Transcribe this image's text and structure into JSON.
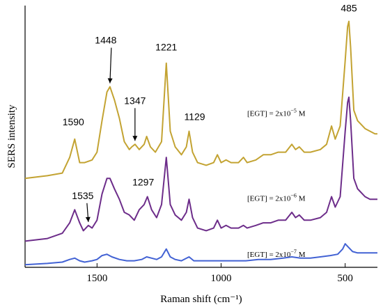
{
  "chart_data": {
    "type": "line",
    "title": "",
    "xlabel": "Raman shift (cm⁻¹)",
    "ylabel": "SERS intensity",
    "x_reversed": true,
    "xlim": [
      1790,
      370
    ],
    "ylim": [
      0,
      100
    ],
    "x_ticks": [
      {
        "value": 1500,
        "label": "1500"
      },
      {
        "value": 1000,
        "label": "1000"
      },
      {
        "value": 500,
        "label": "500"
      }
    ],
    "y_ticks_shown": false,
    "grid": false,
    "legend": "none",
    "series": [
      {
        "name_parts": {
          "prefix": "[EGT] = 2x10",
          "exp": "−5",
          "suffix": " M"
        },
        "color": "#c3a332",
        "offset": 34,
        "points": [
          [
            1790,
            0
          ],
          [
            1700,
            1
          ],
          [
            1640,
            2
          ],
          [
            1610,
            8
          ],
          [
            1590,
            15
          ],
          [
            1570,
            6
          ],
          [
            1550,
            6
          ],
          [
            1520,
            7
          ],
          [
            1500,
            10
          ],
          [
            1480,
            22
          ],
          [
            1460,
            33
          ],
          [
            1448,
            35
          ],
          [
            1430,
            30
          ],
          [
            1410,
            23
          ],
          [
            1390,
            14
          ],
          [
            1370,
            11
          ],
          [
            1360,
            12
          ],
          [
            1347,
            13
          ],
          [
            1330,
            11
          ],
          [
            1310,
            13
          ],
          [
            1300,
            16
          ],
          [
            1285,
            12
          ],
          [
            1265,
            10
          ],
          [
            1240,
            14
          ],
          [
            1221,
            44
          ],
          [
            1205,
            18
          ],
          [
            1185,
            12
          ],
          [
            1160,
            9
          ],
          [
            1140,
            12
          ],
          [
            1129,
            18
          ],
          [
            1115,
            10
          ],
          [
            1095,
            6
          ],
          [
            1060,
            5
          ],
          [
            1030,
            6
          ],
          [
            1015,
            9
          ],
          [
            1000,
            6
          ],
          [
            980,
            7
          ],
          [
            960,
            6
          ],
          [
            930,
            6
          ],
          [
            910,
            8
          ],
          [
            895,
            6
          ],
          [
            860,
            7
          ],
          [
            830,
            9
          ],
          [
            800,
            9
          ],
          [
            770,
            10
          ],
          [
            740,
            10
          ],
          [
            715,
            13
          ],
          [
            700,
            11
          ],
          [
            685,
            12
          ],
          [
            665,
            10
          ],
          [
            640,
            10
          ],
          [
            600,
            11
          ],
          [
            575,
            13
          ],
          [
            555,
            20
          ],
          [
            540,
            15
          ],
          [
            520,
            20
          ],
          [
            500,
            45
          ],
          [
            490,
            58
          ],
          [
            485,
            60
          ],
          [
            478,
            50
          ],
          [
            465,
            26
          ],
          [
            450,
            22
          ],
          [
            440,
            21
          ],
          [
            420,
            19
          ],
          [
            400,
            18
          ],
          [
            380,
            17
          ],
          [
            370,
            17
          ]
        ]
      },
      {
        "name_parts": {
          "prefix": "[EGT] = 2x10",
          "exp": "−6",
          "suffix": " M"
        },
        "color": "#6d2d8a",
        "offset": 10,
        "points": [
          [
            1790,
            0
          ],
          [
            1700,
            1
          ],
          [
            1640,
            3
          ],
          [
            1610,
            7
          ],
          [
            1590,
            12
          ],
          [
            1570,
            7
          ],
          [
            1555,
            4
          ],
          [
            1535,
            6
          ],
          [
            1520,
            5
          ],
          [
            1500,
            8
          ],
          [
            1480,
            18
          ],
          [
            1460,
            24
          ],
          [
            1448,
            24
          ],
          [
            1430,
            20
          ],
          [
            1410,
            16
          ],
          [
            1390,
            11
          ],
          [
            1370,
            10
          ],
          [
            1350,
            8
          ],
          [
            1330,
            12
          ],
          [
            1310,
            14
          ],
          [
            1297,
            17
          ],
          [
            1280,
            12
          ],
          [
            1260,
            9
          ],
          [
            1240,
            14
          ],
          [
            1221,
            32
          ],
          [
            1205,
            14
          ],
          [
            1185,
            10
          ],
          [
            1160,
            8
          ],
          [
            1140,
            11
          ],
          [
            1129,
            16
          ],
          [
            1115,
            9
          ],
          [
            1095,
            5
          ],
          [
            1060,
            4
          ],
          [
            1030,
            5
          ],
          [
            1015,
            8
          ],
          [
            1000,
            5
          ],
          [
            980,
            6
          ],
          [
            960,
            5
          ],
          [
            930,
            5
          ],
          [
            910,
            6
          ],
          [
            895,
            5
          ],
          [
            860,
            6
          ],
          [
            830,
            7
          ],
          [
            800,
            7
          ],
          [
            770,
            8
          ],
          [
            740,
            8
          ],
          [
            715,
            11
          ],
          [
            700,
            9
          ],
          [
            685,
            10
          ],
          [
            665,
            8
          ],
          [
            640,
            8
          ],
          [
            600,
            9
          ],
          [
            575,
            11
          ],
          [
            555,
            17
          ],
          [
            540,
            13
          ],
          [
            520,
            17
          ],
          [
            500,
            42
          ],
          [
            490,
            53
          ],
          [
            485,
            55
          ],
          [
            478,
            46
          ],
          [
            465,
            24
          ],
          [
            450,
            20
          ],
          [
            440,
            19
          ],
          [
            420,
            17
          ],
          [
            400,
            16
          ],
          [
            380,
            16
          ],
          [
            370,
            16
          ]
        ]
      },
      {
        "name_parts": {
          "prefix": "[EGT] = 2x10",
          "exp": "−7",
          "suffix": " M"
        },
        "color": "#4262d4",
        "offset": 1,
        "points": [
          [
            1790,
            0
          ],
          [
            1700,
            0.5
          ],
          [
            1640,
            1
          ],
          [
            1610,
            2
          ],
          [
            1590,
            2.5
          ],
          [
            1570,
            1.5
          ],
          [
            1550,
            1
          ],
          [
            1520,
            1.5
          ],
          [
            1500,
            2
          ],
          [
            1480,
            3.5
          ],
          [
            1460,
            4
          ],
          [
            1440,
            3
          ],
          [
            1410,
            2
          ],
          [
            1380,
            1.5
          ],
          [
            1350,
            1.5
          ],
          [
            1320,
            2
          ],
          [
            1300,
            3
          ],
          [
            1280,
            2.5
          ],
          [
            1260,
            2
          ],
          [
            1240,
            3
          ],
          [
            1221,
            6
          ],
          [
            1205,
            3
          ],
          [
            1185,
            2
          ],
          [
            1160,
            1.5
          ],
          [
            1129,
            3
          ],
          [
            1110,
            1.5
          ],
          [
            1080,
            1.5
          ],
          [
            1050,
            1.5
          ],
          [
            1000,
            1.5
          ],
          [
            950,
            1.5
          ],
          [
            900,
            1.5
          ],
          [
            850,
            2
          ],
          [
            800,
            2
          ],
          [
            750,
            2.5
          ],
          [
            715,
            3
          ],
          [
            680,
            2.5
          ],
          [
            640,
            2.5
          ],
          [
            600,
            3
          ],
          [
            560,
            3.5
          ],
          [
            530,
            4
          ],
          [
            510,
            6
          ],
          [
            500,
            8
          ],
          [
            490,
            7
          ],
          [
            470,
            5
          ],
          [
            450,
            4.5
          ],
          [
            420,
            4.5
          ],
          [
            400,
            4.5
          ],
          [
            380,
            4.5
          ],
          [
            370,
            4.5
          ]
        ]
      }
    ],
    "annotations": [
      {
        "text": "1590",
        "x": 1590,
        "series": 0,
        "arrow": false
      },
      {
        "text": "1448",
        "x": 1448,
        "series": 0,
        "arrow": true
      },
      {
        "text": "1347",
        "x": 1347,
        "series": 0,
        "arrow": true
      },
      {
        "text": "1221",
        "x": 1221,
        "series": 0,
        "arrow": false
      },
      {
        "text": "1129",
        "x": 1129,
        "series": 0,
        "arrow": false
      },
      {
        "text": "485",
        "x": 485,
        "series": 0,
        "arrow": false
      },
      {
        "text": "1535",
        "x": 1535,
        "series": 1,
        "arrow": true
      },
      {
        "text": "1297",
        "x": 1297,
        "series": 1,
        "arrow": false
      }
    ]
  }
}
